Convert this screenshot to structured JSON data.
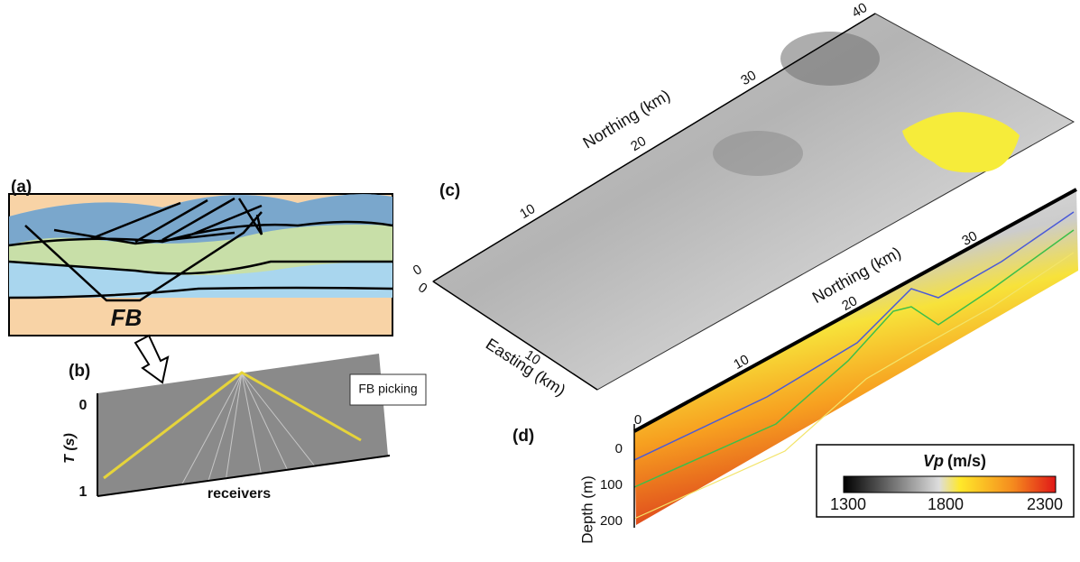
{
  "panel_a": {
    "label": "(a)",
    "fb": "FB"
  },
  "panel_b": {
    "label": "(b)",
    "fb_picking": "FB picking",
    "t_axis": "T (s)",
    "t_ticks": [
      "0",
      "1"
    ],
    "x_axis": "receivers"
  },
  "panel_c": {
    "label": "(c)",
    "northing_label": "Northing (km)",
    "northing_ticks": [
      "0",
      "10",
      "20",
      "30",
      "40"
    ],
    "easting_label": "Easting (km)",
    "easting_ticks": [
      "0",
      "10"
    ]
  },
  "panel_d": {
    "label": "(d)",
    "northing_label": "Northing (km)",
    "northing_ticks": [
      "10",
      "20",
      "30"
    ],
    "start_tick": "0",
    "depth_label": "Depth (m)",
    "depth_ticks": [
      "0",
      "100",
      "200"
    ]
  },
  "colorbar": {
    "title": "Vp",
    "unit": "(m/s)",
    "ticks": [
      "1300",
      "1800",
      "2300"
    ]
  }
}
